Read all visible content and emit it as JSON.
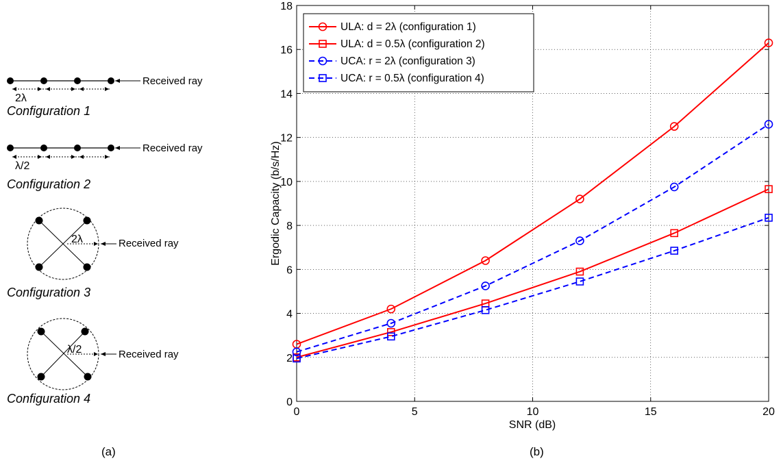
{
  "diagram": {
    "configurations": [
      {
        "label": "Configuration 1",
        "spacing": "2λ",
        "ray": "Received ray",
        "kind": "ula"
      },
      {
        "label": "Configuration 2",
        "spacing": "λ/2",
        "ray": "Received ray",
        "kind": "ula"
      },
      {
        "label": "Configuration 3",
        "spacing": "2λ",
        "ray": "Received ray",
        "kind": "uca"
      },
      {
        "label": "Configuration 4",
        "spacing": "λ/2",
        "ray": "Received ray",
        "kind": "uca"
      }
    ],
    "caption": "(a)"
  },
  "chart_data": {
    "type": "line",
    "caption": "(b)",
    "xlabel": "SNR (dB)",
    "ylabel": "Ergodic Capacity (b/s/Hz)",
    "xlim": [
      0,
      20
    ],
    "ylim": [
      0,
      18
    ],
    "xticks": [
      0,
      5,
      10,
      15,
      20
    ],
    "yticks": [
      0,
      2,
      4,
      6,
      8,
      10,
      12,
      14,
      16,
      18
    ],
    "grid": true,
    "legend_position": "top-left",
    "x": [
      0,
      4,
      8,
      12,
      16,
      20
    ],
    "series": [
      {
        "name": "ULA: d = 2λ (configuration 1)",
        "values": [
          2.6,
          4.2,
          6.4,
          9.2,
          12.5,
          16.3
        ],
        "color": "#ff0000",
        "style": "solid",
        "marker": "circle"
      },
      {
        "name": "ULA: d = 0.5λ (configuration 2)",
        "values": [
          2.0,
          3.15,
          4.45,
          5.9,
          7.65,
          9.65
        ],
        "color": "#ff0000",
        "style": "solid",
        "marker": "square"
      },
      {
        "name": "UCA: r = 2λ (configuration 3)",
        "values": [
          2.25,
          3.55,
          5.25,
          7.3,
          9.75,
          12.6
        ],
        "color": "#0000ff",
        "style": "dashed",
        "marker": "circle"
      },
      {
        "name": "UCA: r = 0.5λ (configuration 4)",
        "values": [
          1.95,
          2.95,
          4.15,
          5.45,
          6.85,
          8.35
        ],
        "color": "#0000ff",
        "style": "dashed",
        "marker": "square"
      }
    ]
  }
}
